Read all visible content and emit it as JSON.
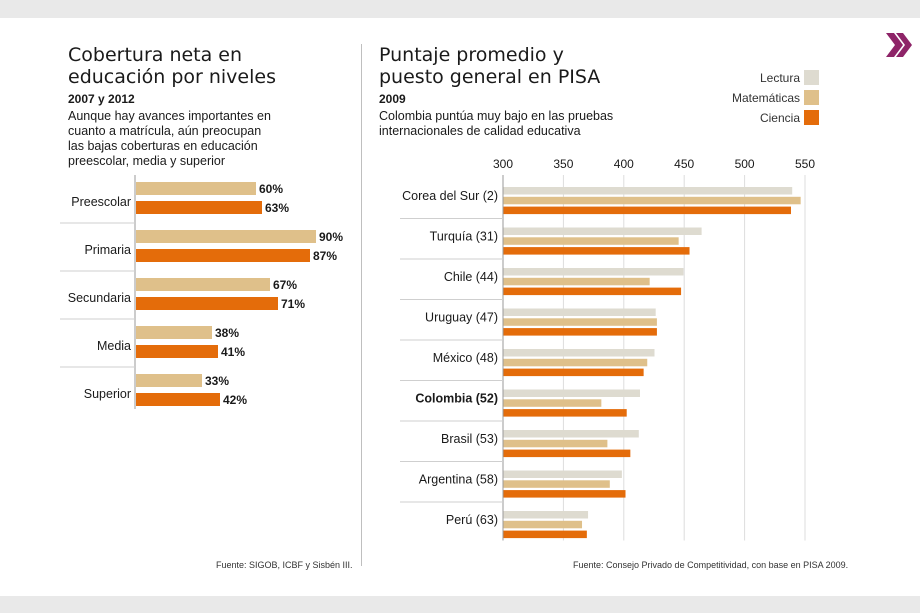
{
  "colors": {
    "lectura": "#dedbd0",
    "matematicas": "#dfc08a",
    "ciencia": "#e46c0a",
    "logo": "#8e2468"
  },
  "icons": {
    "logo": "double-chevron-icon"
  },
  "left": {
    "title_line1": "Cobertura neta en",
    "title_line2": "educación por niveles",
    "years": "2007 y 2012",
    "sub_line1": "Aunque hay avances importantes en",
    "sub_line2": "cuanto a matrícula, aún preocupan",
    "sub_line3": "las bajas coberturas en educación",
    "sub_line4": "preescolar, media y superior",
    "source": "Fuente: SIGOB, ICBF y Sisbén III."
  },
  "right": {
    "title_line1": "Puntaje promedio y",
    "title_line2": "puesto general en PISA",
    "years": "2009",
    "sub_line1": "Colombia puntúa muy bajo en las pruebas",
    "sub_line2": "internacionales de calidad educativa",
    "source": "Fuente: Consejo Privado de Competitividad, con base en PISA 2009."
  },
  "legend": {
    "lectura": "Lectura",
    "matematicas": "Matemáticas",
    "ciencia": "Ciencia"
  },
  "chart_data": [
    {
      "type": "bar",
      "orientation": "horizontal",
      "categories": [
        "Preescolar",
        "Primaria",
        "Secundaria",
        "Media",
        "Superior"
      ],
      "series": [
        {
          "values": [
            60,
            90,
            67,
            38,
            33
          ]
        },
        {
          "values": [
            63,
            87,
            71,
            41,
            42
          ]
        }
      ],
      "value_labels": [
        [
          "60%",
          "90%",
          "67%",
          "38%",
          "33%"
        ],
        [
          "63%",
          "87%",
          "71%",
          "41%",
          "42%"
        ]
      ],
      "title": "Cobertura neta en educación por niveles",
      "subtitle": "2007 y 2012",
      "xlim": [
        0,
        100
      ],
      "grid": false
    },
    {
      "type": "bar",
      "orientation": "horizontal",
      "categories": [
        "Corea del Sur (2)",
        "Turquía (31)",
        "Chile (44)",
        "Uruguay (47)",
        "México (48)",
        "Colombia (52)",
        "Brasil (53)",
        "Argentina (58)",
        "Perú (63)"
      ],
      "highlight": "Colombia (52)",
      "series": [
        {
          "name": "Lectura",
          "values": [
            539,
            464,
            449,
            426,
            425,
            413,
            412,
            398,
            370
          ]
        },
        {
          "name": "Matemáticas",
          "values": [
            546,
            445,
            421,
            427,
            419,
            381,
            386,
            388,
            365
          ]
        },
        {
          "name": "Ciencia",
          "values": [
            538,
            454,
            447,
            427,
            416,
            402,
            405,
            401,
            369
          ]
        }
      ],
      "title": "Puntaje promedio y puesto general en PISA",
      "subtitle": "2009",
      "xlim": [
        300,
        560
      ],
      "xticks": [
        300,
        350,
        400,
        450,
        500,
        550
      ],
      "grid": true,
      "legend": "top-right"
    }
  ]
}
